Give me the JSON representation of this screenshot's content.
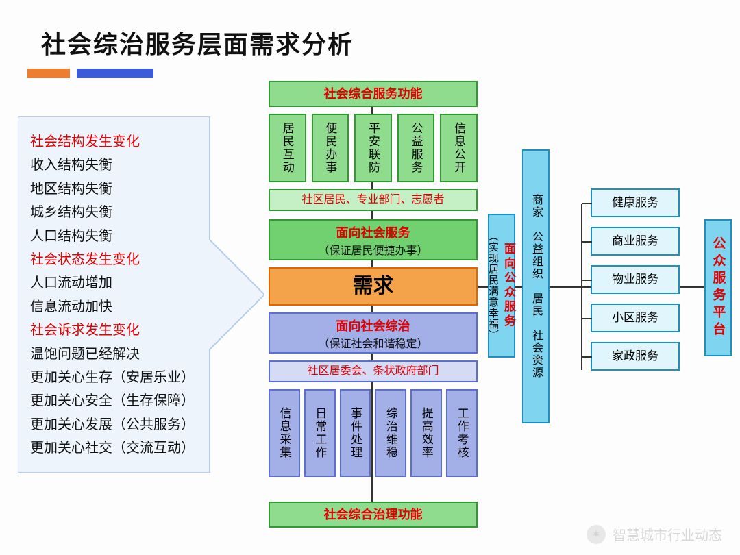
{
  "title": "社会综治服务层面需求分析",
  "accent": {
    "orange": "#ed7d31",
    "blue": "#3b5bd9"
  },
  "left_panel": {
    "arrow_fill": "#eef4fb",
    "arrow_stroke": "#b5cde8",
    "lines": [
      {
        "text": "社会结构发生变化",
        "red": true
      },
      {
        "text": "收入结构失衡",
        "red": false
      },
      {
        "text": "地区结构失衡",
        "red": false
      },
      {
        "text": "城乡结构失衡",
        "red": false
      },
      {
        "text": "人口结构失衡",
        "red": false
      },
      {
        "text": "社会状态发生变化",
        "red": true
      },
      {
        "text": "人口流动增加",
        "red": false
      },
      {
        "text": "信息流动加快",
        "red": false
      },
      {
        "text": "社会诉求发生变化",
        "red": true
      },
      {
        "text": "温饱问题已经解决",
        "red": false
      },
      {
        "text": "更加关心生存（安居乐业）",
        "red": false
      },
      {
        "text": "更加关心安全（生存保障）",
        "red": false
      },
      {
        "text": "更加关心发展（公共服务）",
        "red": false
      },
      {
        "text": "更加关心社交（交流互动）",
        "red": false
      }
    ]
  },
  "middle": {
    "top_function": "社会综合服务功能",
    "top_items": [
      "居民互动",
      "便民办事",
      "平安联防",
      "公益服务",
      "信息公开"
    ],
    "actors_top": "社区居民、专业部门、志愿者",
    "service": {
      "l1": "面向社会服务",
      "l2": "（保证居民便捷办事）"
    },
    "need": "需求",
    "governance": {
      "l1": "面向社会综治",
      "l2": "（保证社会和谐稳定）"
    },
    "actors_bot": "社区居委会、条状政府部门",
    "bot_items": [
      "信息采集",
      "日常工作",
      "事件处理",
      "综治维稳",
      "提高效率",
      "工作考核"
    ],
    "bot_function": "社会综合治理功能",
    "colors": {
      "green_border": "#339933",
      "green_fill": "#8fdc8f",
      "green_light": "#c5efc5",
      "purple_border": "#5a6fcf",
      "purple_fill": "#a3b0e8",
      "purple_light": "#d5dbf5",
      "orange_border": "#e06600",
      "orange_fill": "#f5a34b"
    }
  },
  "right": {
    "public_service": {
      "l1": "面向公众服务",
      "l2": "（实现居民满意幸福）"
    },
    "resources": "商家　公益组织　居民　社会资源",
    "services": [
      "健康服务",
      "商业服务",
      "物业服务",
      "小区服务",
      "家政服务"
    ],
    "platform": "公众服务平台",
    "colors": {
      "cyan_border": "#1f8fbf",
      "cyan_fill": "#7fd4ef",
      "cyan_light": "#e0f5fc"
    }
  },
  "watermark": "智慧城市行业动态"
}
